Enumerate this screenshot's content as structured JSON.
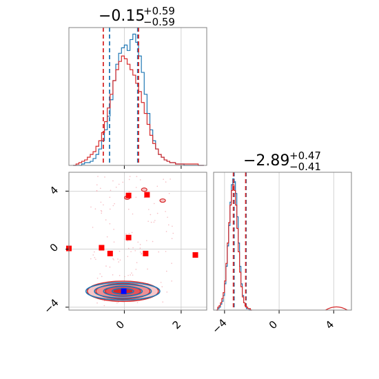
{
  "chart_data": [
    {
      "type": "histogram",
      "panel": "top-left",
      "title": "−0.15",
      "title_sup": "+0.59",
      "title_sub": "−0.59",
      "xlim": [
        -1.95,
        2.9
      ],
      "x_ticks": [
        0,
        2
      ],
      "x_ticklabels": [
        "",
        ""
      ],
      "grid": true,
      "series": [
        {
          "color": "#1f77b4",
          "bin_start": -1.8,
          "bin_width": 0.1,
          "counts": [
            0,
            0,
            0,
            1,
            2,
            2,
            3,
            5,
            8,
            12,
            18,
            26,
            36,
            48,
            62,
            74,
            82,
            86,
            88,
            84,
            92,
            96,
            90,
            80,
            68,
            52,
            38,
            26,
            18,
            12,
            8,
            6,
            4,
            3,
            2,
            2,
            1,
            1,
            1,
            0,
            0,
            0,
            0,
            0,
            0,
            0
          ],
          "quantile_lines": [
            -0.52,
            0.47
          ]
        },
        {
          "color": "#d62728",
          "bin_start": -1.8,
          "bin_width": 0.1,
          "counts": [
            0,
            1,
            2,
            3,
            4,
            6,
            8,
            10,
            14,
            18,
            24,
            32,
            42,
            52,
            62,
            70,
            76,
            80,
            78,
            74,
            70,
            66,
            60,
            54,
            46,
            38,
            30,
            22,
            16,
            12,
            8,
            6,
            4,
            3,
            2,
            2,
            1,
            1,
            1,
            1,
            1,
            1,
            1,
            1,
            0,
            0
          ],
          "quantile_lines": [
            -0.74,
            0.5
          ]
        }
      ]
    },
    {
      "type": "contour",
      "panel": "bottom-left",
      "xlim": [
        -1.95,
        2.9
      ],
      "ylim": [
        -4.2,
        5.3
      ],
      "x_ticks": [
        0,
        2
      ],
      "x_ticklabels": [
        "0",
        "2"
      ],
      "y_ticks": [
        4,
        0,
        -4
      ],
      "y_ticklabels": [
        "4",
        "0",
        "−4"
      ],
      "grid": true,
      "series": [
        {
          "color": "#d62728",
          "centre": [
            -0.05,
            -2.9
          ],
          "contour_radii": [
            [
              1.25,
              0.7
            ],
            [
              0.95,
              0.53
            ],
            [
              0.62,
              0.36
            ],
            [
              0.32,
              0.2
            ]
          ],
          "outlier_points": [
            [
              0.15,
              3.7
            ],
            [
              0.8,
              3.75
            ],
            [
              -0.8,
              0.1
            ],
            [
              0.15,
              0.8
            ],
            [
              -0.5,
              -0.3
            ],
            [
              0.75,
              -0.3
            ],
            [
              2.5,
              -0.4
            ],
            [
              -1.95,
              0.05
            ]
          ]
        },
        {
          "color": "#1f77b4",
          "centre": [
            -0.05,
            -2.9
          ],
          "contour_radii": [
            [
              1.3,
              0.6
            ],
            [
              1.0,
              0.47
            ],
            [
              0.68,
              0.33
            ],
            [
              0.38,
              0.19
            ]
          ],
          "marker": [
            -0.02,
            -2.9
          ]
        }
      ]
    },
    {
      "type": "histogram",
      "panel": "bottom-right",
      "title": "−2.89",
      "title_sup": "+0.47",
      "title_sub": "−0.41",
      "xlim": [
        -4.8,
        5.3
      ],
      "x_ticks": [
        -4,
        0,
        4
      ],
      "x_ticklabels": [
        "−4",
        "0",
        "4"
      ],
      "grid": true,
      "series": [
        {
          "color": "#1f77b4",
          "bin_start": -4.6,
          "bin_width": 0.1,
          "counts": [
            0,
            1,
            2,
            4,
            6,
            10,
            18,
            30,
            44,
            58,
            74,
            86,
            90,
            88,
            80,
            64,
            46,
            30,
            18,
            10,
            5,
            3,
            1,
            1,
            0,
            0
          ],
          "quantile_lines": [
            -3.3,
            -2.42
          ]
        },
        {
          "color": "#d62728",
          "bin_start": -4.6,
          "bin_width": 0.1,
          "counts": [
            0,
            2,
            3,
            5,
            8,
            12,
            20,
            32,
            46,
            60,
            72,
            82,
            86,
            82,
            72,
            56,
            40,
            26,
            16,
            9,
            5,
            3,
            2,
            1,
            1,
            0
          ],
          "quantile_lines": [
            -3.35,
            -2.45
          ],
          "tail_bump": {
            "x_start": 3.4,
            "x_end": 5.0,
            "peak": 2.2
          }
        }
      ]
    }
  ]
}
